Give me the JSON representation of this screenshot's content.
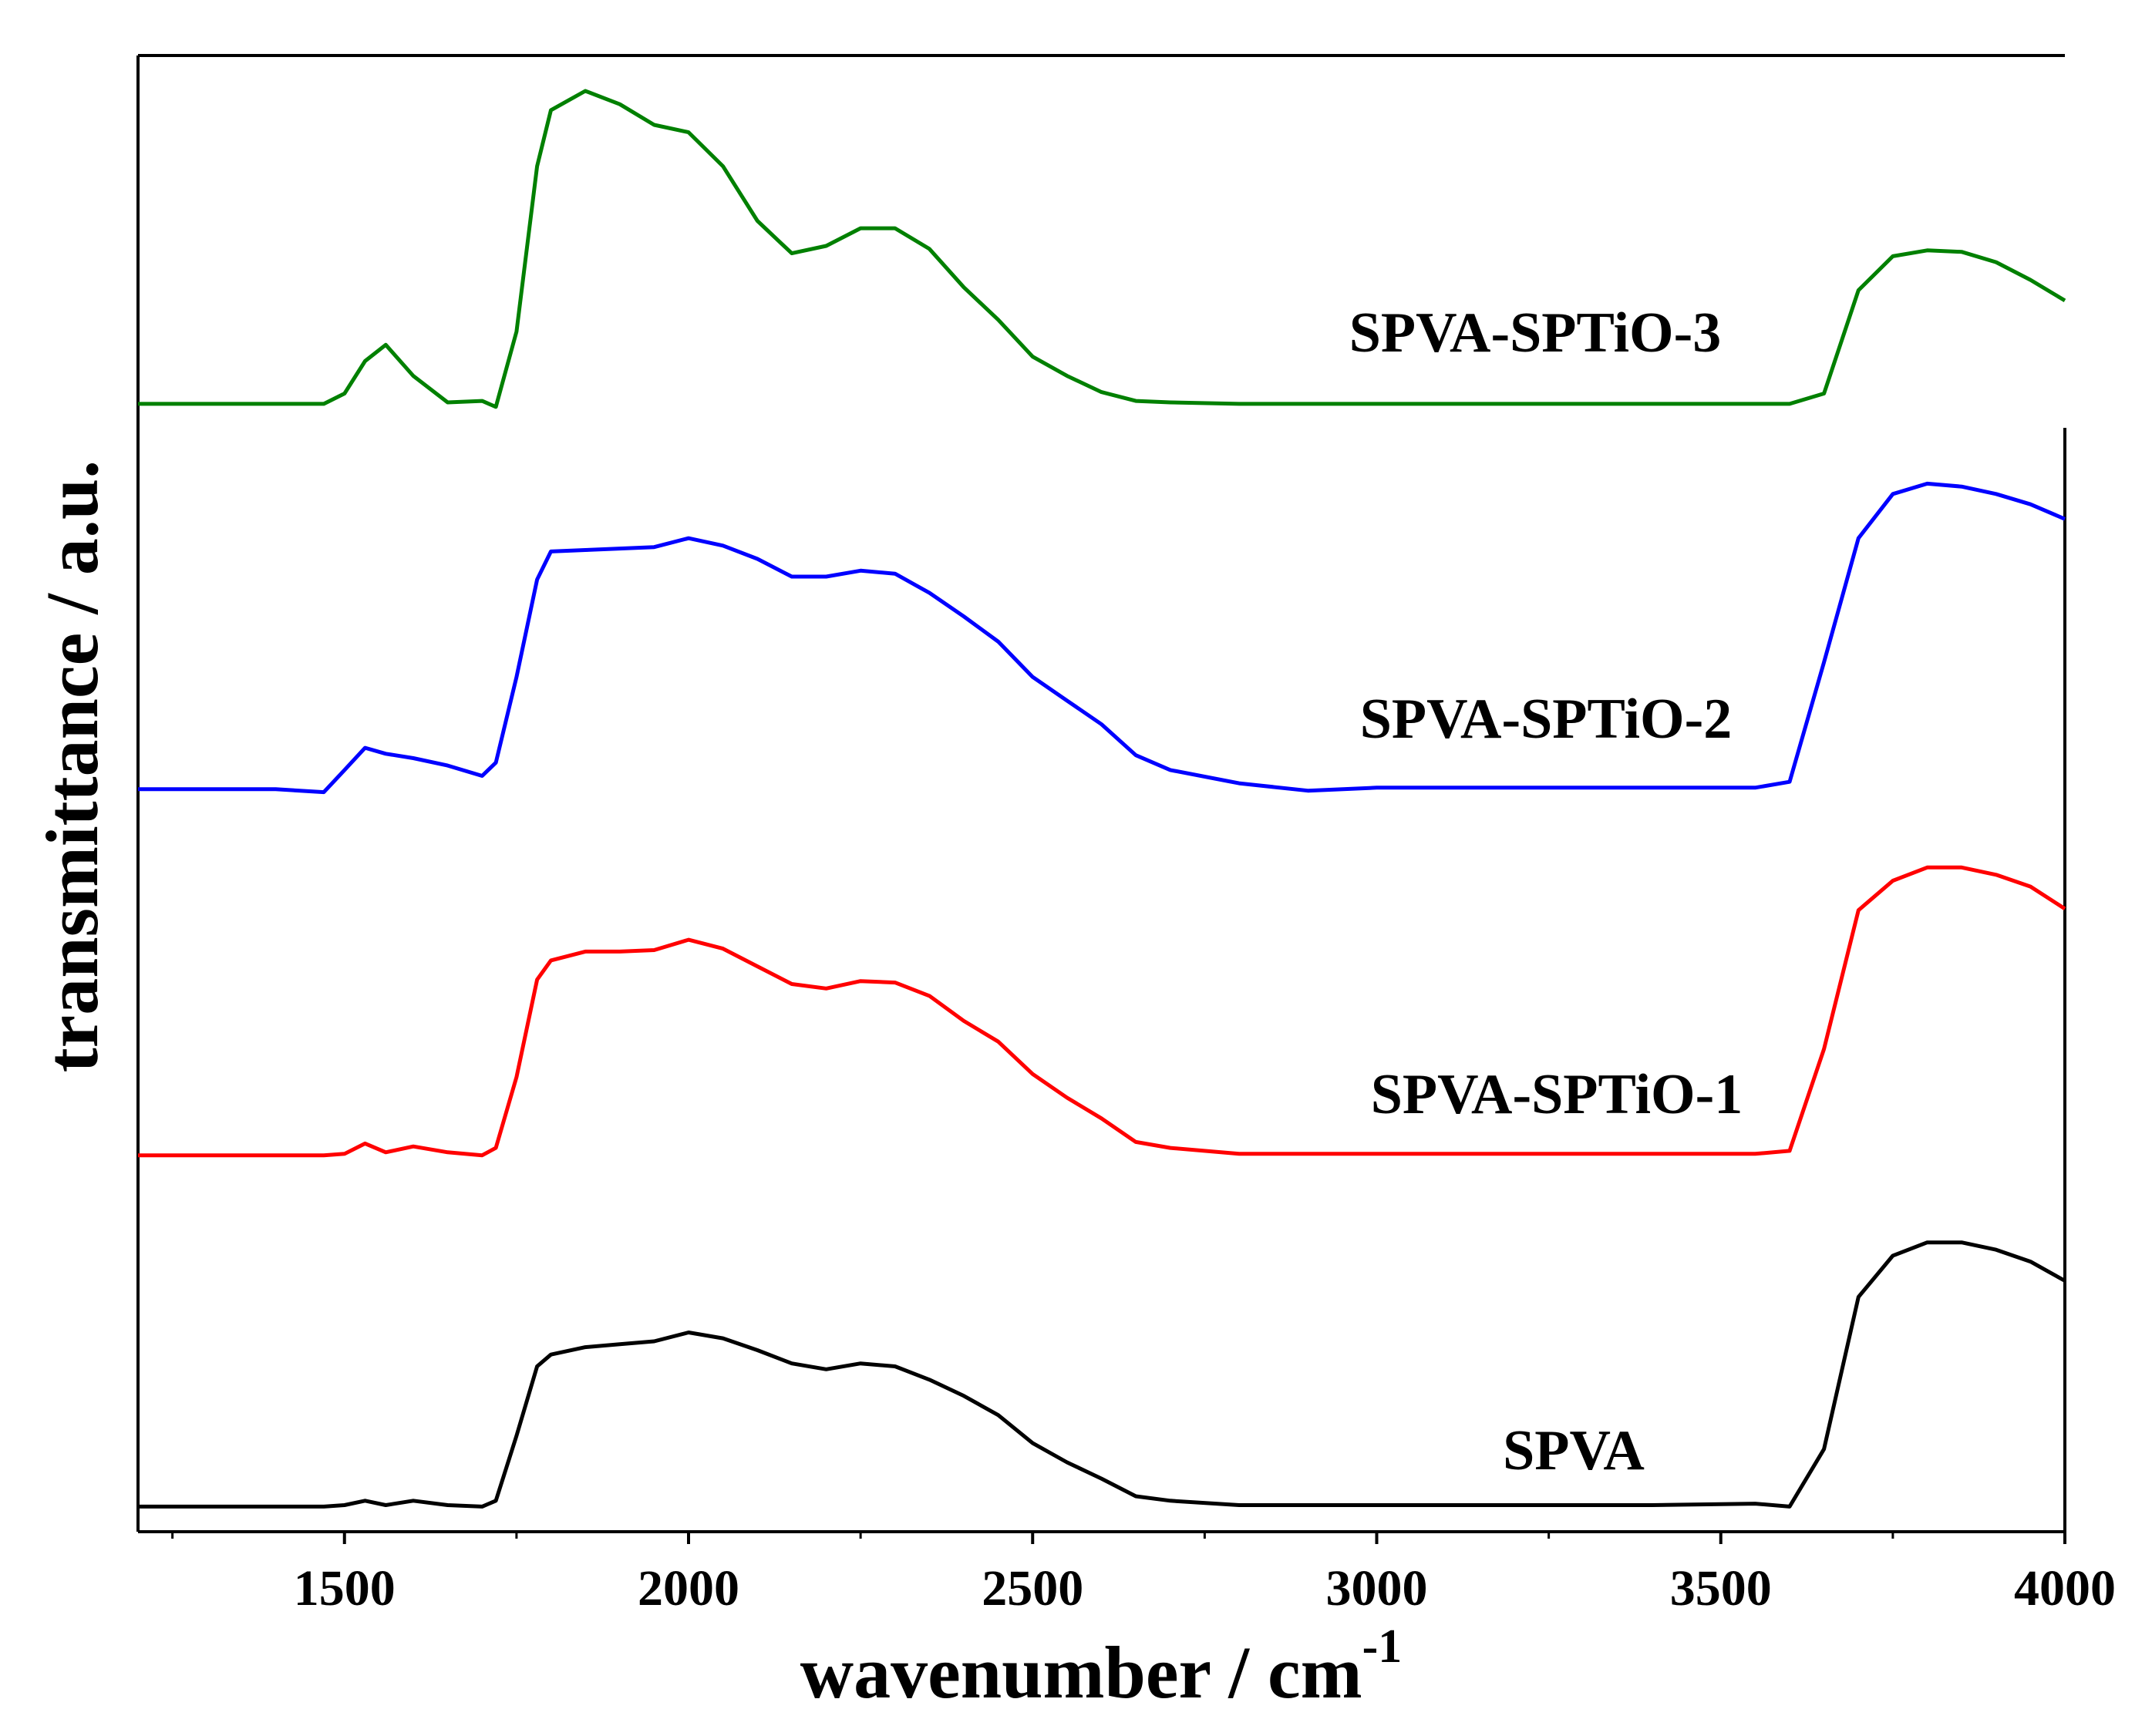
{
  "chart_data": {
    "type": "line",
    "x_label": "wavenumber / cm",
    "x_label_superscript": "-1",
    "y_label": "transmittance / a.u.",
    "xlim": [
      1200,
      4000
    ],
    "xticks": [
      1500,
      2000,
      2500,
      3000,
      3500,
      4000
    ],
    "xminorticks": [
      1250,
      1750,
      2250,
      2750,
      3250,
      3750
    ],
    "ylim": [
      0,
      100
    ],
    "x": [
      1200,
      1300,
      1400,
      1470,
      1500,
      1530,
      1560,
      1600,
      1650,
      1700,
      1720,
      1750,
      1780,
      1800,
      1850,
      1900,
      1950,
      2000,
      2050,
      2100,
      2150,
      2200,
      2250,
      2300,
      2350,
      2400,
      2450,
      2500,
      2550,
      2600,
      2650,
      2700,
      2800,
      2900,
      3000,
      3200,
      3400,
      3550,
      3600,
      3650,
      3700,
      3750,
      3800,
      3850,
      3900,
      3950,
      4000
    ],
    "series": [
      {
        "name": "SPVA",
        "color": "#000000",
        "values": [
          1.7,
          1.7,
          1.7,
          1.7,
          1.8,
          2.1,
          1.8,
          2.1,
          1.8,
          1.7,
          2.1,
          6.5,
          11.2,
          12,
          12.5,
          12.7,
          12.9,
          13.5,
          13.1,
          12.3,
          11.4,
          11,
          11.4,
          11.2,
          10.3,
          9.2,
          7.9,
          6,
          4.7,
          3.6,
          2.4,
          2.1,
          1.8,
          1.8,
          1.8,
          1.8,
          1.8,
          1.9,
          1.7,
          5.6,
          15.9,
          18.7,
          19.6,
          19.6,
          19.1,
          18.3,
          17
        ]
      },
      {
        "name": "SPVA-SPTiO-1",
        "color": "#ff0000",
        "values": [
          25.5,
          25.5,
          25.5,
          25.5,
          25.6,
          26.3,
          25.7,
          26.1,
          25.7,
          25.5,
          26,
          30.8,
          37.4,
          38.7,
          39.3,
          39.3,
          39.4,
          40.1,
          39.5,
          38.3,
          37.1,
          36.8,
          37.3,
          37.2,
          36.3,
          34.6,
          33.2,
          31,
          29.4,
          28,
          26.4,
          26,
          25.6,
          25.6,
          25.6,
          25.6,
          25.6,
          25.6,
          25.8,
          32.7,
          42.1,
          44.1,
          45,
          45,
          44.5,
          43.7,
          42.2
        ]
      },
      {
        "name": "SPVA-SPTiO-2",
        "color": "#0000ff",
        "values": [
          50.3,
          50.3,
          50.3,
          50.1,
          51.6,
          53.1,
          52.7,
          52.4,
          51.9,
          51.2,
          52.1,
          57.9,
          64.5,
          66.4,
          66.5,
          66.6,
          66.7,
          67.3,
          66.8,
          65.9,
          64.7,
          64.7,
          65.1,
          64.9,
          63.6,
          62,
          60.3,
          57.9,
          56.3,
          54.7,
          52.6,
          51.6,
          50.7,
          50.2,
          50.4,
          50.4,
          50.4,
          50.4,
          50.8,
          58.9,
          67.3,
          70.3,
          71,
          70.8,
          70.3,
          69.6,
          68.6
        ]
      },
      {
        "name": "SPVA-SPTiO-3",
        "color": "#008000",
        "values": [
          76.4,
          76.4,
          76.4,
          76.4,
          77.1,
          79.3,
          80.4,
          78.3,
          76.5,
          76.6,
          76.2,
          81.3,
          92.5,
          96.3,
          97.6,
          96.7,
          95.3,
          94.8,
          92.5,
          88.8,
          86.6,
          87.1,
          88.3,
          88.3,
          86.9,
          84.3,
          82.1,
          79.6,
          78.3,
          77.2,
          76.6,
          76.5,
          76.4,
          76.4,
          76.4,
          76.4,
          76.4,
          76.4,
          76.4,
          77.1,
          84.1,
          86.4,
          86.8,
          86.7,
          86,
          84.8,
          83.4
        ]
      }
    ]
  }
}
